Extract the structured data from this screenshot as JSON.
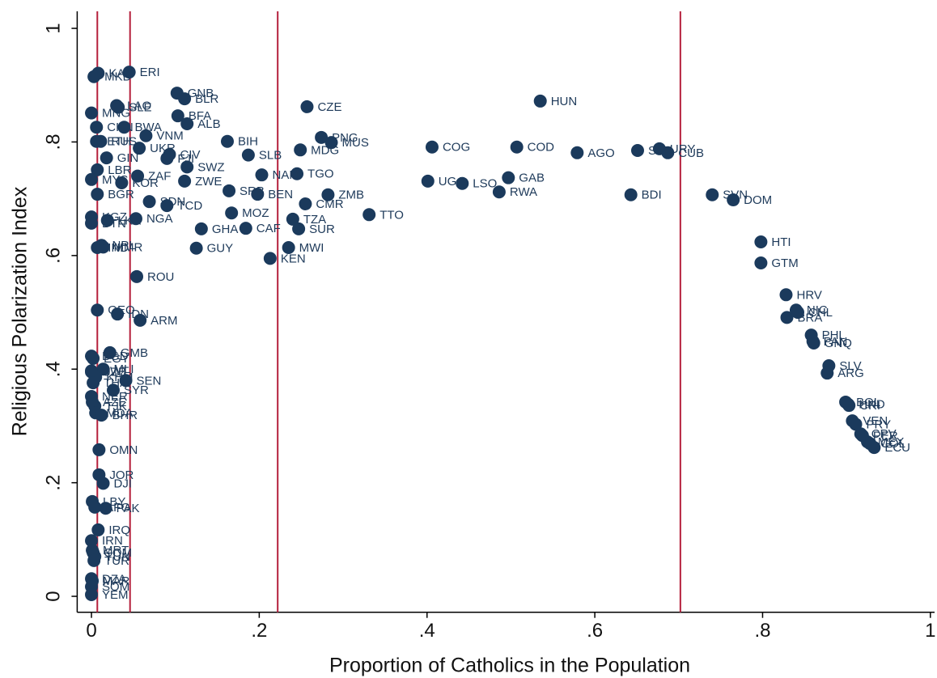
{
  "chart_data": {
    "type": "scatter",
    "x_label": "Proportion of Catholics in the Population",
    "y_label": "Religious Polarization Index",
    "xlim": [
      -0.017,
      1.005
    ],
    "ylim": [
      -0.028,
      1.03
    ],
    "xticks": [
      0,
      {
        "value": 0.2,
        "label": ".2"
      },
      {
        "value": 0.4,
        "label": ".4"
      },
      {
        "value": 0.6,
        "label": ".6"
      },
      {
        "value": 0.8,
        "label": ".8"
      },
      1
    ],
    "yticks": [
      0,
      {
        "value": 0.2,
        "label": ".2"
      },
      {
        "value": 0.4,
        "label": ".4"
      },
      {
        "value": 0.6,
        "label": ".6"
      },
      {
        "value": 0.8,
        "label": ".8"
      },
      1
    ],
    "color": "#1b3a5c",
    "vlines": [
      0.007,
      0.046,
      0.222,
      0.702
    ],
    "vline_color": "#b5203c",
    "labels": [
      "HUN",
      "CZE",
      "URY",
      "CUB",
      "SVK",
      "AGO",
      "COD",
      "COG",
      "UGA",
      "LSO",
      "GAB",
      "RWA",
      "BDI",
      "SVN",
      "DOM",
      "TTO",
      "PNG",
      "MUS",
      "MDG",
      "TGO",
      "ZMB",
      "CMR",
      "TZA",
      "SUR",
      "MWI",
      "KEN",
      "CAF",
      "MOZ",
      "BEN",
      "NAM",
      "SLB",
      "BIH",
      "SRB",
      "GHA",
      "GUY",
      "ZWE",
      "SWZ",
      "CIV",
      "FJI",
      "VNM",
      "BWA",
      "UKR",
      "GNB",
      "BLR",
      "BFA",
      "ALB",
      "LAO",
      "SLE",
      "KAZ",
      "MKD",
      "ERI",
      "MNG",
      "CHN",
      "ETH",
      "RUS",
      "GIN",
      "LBR",
      "MYS",
      "KOR",
      "ZAF",
      "BGR",
      "KGZ",
      "BTN",
      "LKA",
      "SDN",
      "TCD",
      "NGA",
      "NPL",
      "MMR",
      "IND",
      "ROU",
      "GEO",
      "IDN",
      "ARM",
      "GMB",
      "BGD",
      "EGY",
      "MLI",
      "KWT",
      "UZB",
      "KHM",
      "THA",
      "SEN",
      "SYR",
      "NER",
      "AZE",
      "TJK",
      "MDA",
      "BHR",
      "OMN",
      "JOR",
      "DJI",
      "PAK",
      "LBY",
      "AFG",
      "IRQ",
      "IRN",
      "MRT",
      "COM",
      "TUN",
      "TUR",
      "DZA",
      "MAR",
      "SOM",
      "YEM",
      "HTI",
      "GTM",
      "HRV",
      "NIC",
      "CHL",
      "BRA",
      "PHL",
      "PAN",
      "GNQ",
      "SLV",
      "ARG",
      "BOL",
      "HND",
      "CRI",
      "VEN",
      "PRY",
      "CPV",
      "PER",
      "MEX",
      "COL",
      "ECU"
    ],
    "x": [
      0.535,
      0.257,
      0.677,
      0.687,
      0.651,
      0.579,
      0.507,
      0.406,
      0.401,
      0.442,
      0.497,
      0.486,
      0.643,
      0.74,
      0.765,
      0.331,
      0.274,
      0.286,
      0.249,
      0.245,
      0.282,
      0.255,
      0.24,
      0.247,
      0.235,
      0.213,
      0.184,
      0.167,
      0.198,
      0.203,
      0.187,
      0.162,
      0.164,
      0.131,
      0.125,
      0.111,
      0.114,
      0.093,
      0.09,
      0.065,
      0.039,
      0.057,
      0.102,
      0.111,
      0.103,
      0.114,
      0.03,
      0.032,
      0.008,
      0.003,
      0.045,
      0.0,
      0.006,
      0.006,
      0.011,
      0.018,
      0.007,
      0.0,
      0.036,
      0.055,
      0.007,
      0.0,
      0.0,
      0.019,
      0.069,
      0.09,
      0.053,
      0.012,
      0.014,
      0.007,
      0.054,
      0.007,
      0.031,
      0.058,
      0.022,
      0.0,
      0.002,
      0.014,
      0.0,
      0.0,
      0.005,
      0.002,
      0.041,
      0.026,
      0.0,
      0.001,
      0.004,
      0.005,
      0.012,
      0.009,
      0.009,
      0.014,
      0.017,
      0.001,
      0.004,
      0.008,
      0.0,
      0.001,
      0.002,
      0.004,
      0.003,
      0.0,
      0.001,
      0.0,
      0.0,
      0.798,
      0.798,
      0.828,
      0.84,
      0.842,
      0.829,
      0.858,
      0.86,
      0.861,
      0.879,
      0.877,
      0.899,
      0.902,
      0.903,
      0.907,
      0.911,
      0.917,
      0.919,
      0.925,
      0.928,
      0.933
    ],
    "values": [
      0.872,
      0.862,
      0.788,
      0.781,
      0.785,
      0.781,
      0.791,
      0.791,
      0.731,
      0.727,
      0.737,
      0.712,
      0.707,
      0.707,
      0.698,
      0.672,
      0.808,
      0.799,
      0.786,
      0.744,
      0.707,
      0.691,
      0.664,
      0.647,
      0.614,
      0.595,
      0.648,
      0.675,
      0.708,
      0.742,
      0.777,
      0.801,
      0.714,
      0.647,
      0.613,
      0.731,
      0.756,
      0.778,
      0.771,
      0.811,
      0.826,
      0.789,
      0.886,
      0.876,
      0.846,
      0.832,
      0.864,
      0.861,
      0.921,
      0.915,
      0.923,
      0.851,
      0.826,
      0.801,
      0.801,
      0.772,
      0.751,
      0.734,
      0.728,
      0.74,
      0.708,
      0.668,
      0.657,
      0.662,
      0.695,
      0.688,
      0.665,
      0.618,
      0.615,
      0.614,
      0.563,
      0.504,
      0.497,
      0.486,
      0.429,
      0.423,
      0.419,
      0.4,
      0.397,
      0.395,
      0.386,
      0.376,
      0.38,
      0.363,
      0.352,
      0.342,
      0.335,
      0.323,
      0.319,
      0.258,
      0.214,
      0.199,
      0.155,
      0.167,
      0.157,
      0.117,
      0.098,
      0.081,
      0.077,
      0.07,
      0.063,
      0.031,
      0.027,
      0.017,
      0.003,
      0.624,
      0.587,
      0.531,
      0.504,
      0.5,
      0.491,
      0.46,
      0.449,
      0.446,
      0.406,
      0.393,
      0.342,
      0.338,
      0.336,
      0.309,
      0.303,
      0.286,
      0.283,
      0.272,
      0.269,
      0.262
    ]
  }
}
